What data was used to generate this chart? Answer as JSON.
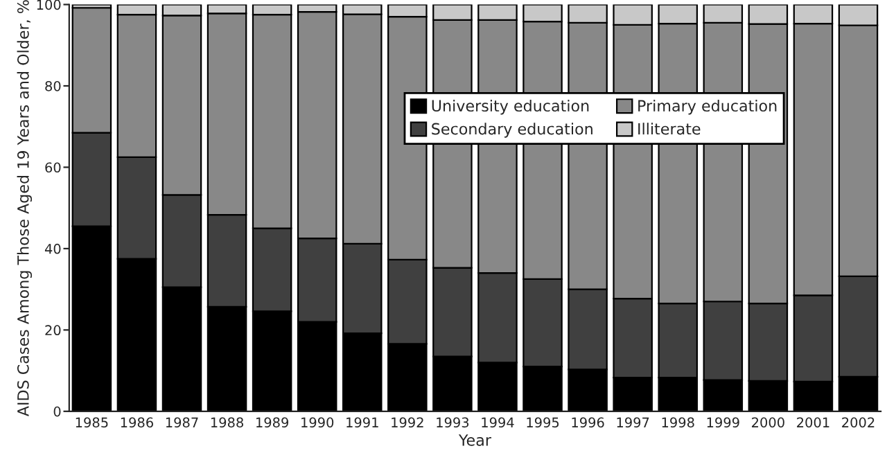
{
  "chart_data": {
    "type": "bar",
    "stacked": true,
    "xlabel": "Year",
    "ylabel": "AIDS Cases Among Those Aged 19 Years and Older, %",
    "categories": [
      "1985",
      "1986",
      "1987",
      "1988",
      "1989",
      "1990",
      "1991",
      "1992",
      "1993",
      "1994",
      "1995",
      "1996",
      "1997",
      "1998",
      "1999",
      "2000",
      "2001",
      "2002"
    ],
    "series": [
      {
        "name": "University education",
        "color": "#000000",
        "values": [
          45.5,
          37.5,
          30.5,
          25.7,
          24.6,
          22,
          19.2,
          16.6,
          13.5,
          12,
          11,
          10.3,
          8.3,
          8.3,
          7.7,
          7.5,
          7.3,
          8.5
        ]
      },
      {
        "name": "Secondary education",
        "color": "#404040",
        "values": [
          23,
          25,
          22.7,
          22.6,
          20.4,
          20.5,
          22,
          20.7,
          21.8,
          22,
          21.5,
          19.7,
          19.4,
          18.2,
          19.3,
          19,
          21.2,
          24.7
        ]
      },
      {
        "name": "Primary education",
        "color": "#888888",
        "values": [
          30.7,
          35,
          44.1,
          49.5,
          52.5,
          55.7,
          56.4,
          59.7,
          60.9,
          62.2,
          63.3,
          65.5,
          67.3,
          68.8,
          68.5,
          68.7,
          66.8,
          61.7
        ]
      },
      {
        "name": "Illiterate",
        "color": "#c8c8c8",
        "values": [
          0.8,
          2.5,
          2.7,
          2.2,
          2.5,
          1.8,
          2.4,
          3,
          3.8,
          3.8,
          4.2,
          4.5,
          5,
          4.7,
          4.5,
          4.8,
          4.7,
          5.1
        ]
      }
    ],
    "ylim": [
      0,
      100
    ],
    "yticks": [
      0,
      20,
      40,
      60,
      80,
      100
    ],
    "grid": false,
    "legend": "right"
  }
}
